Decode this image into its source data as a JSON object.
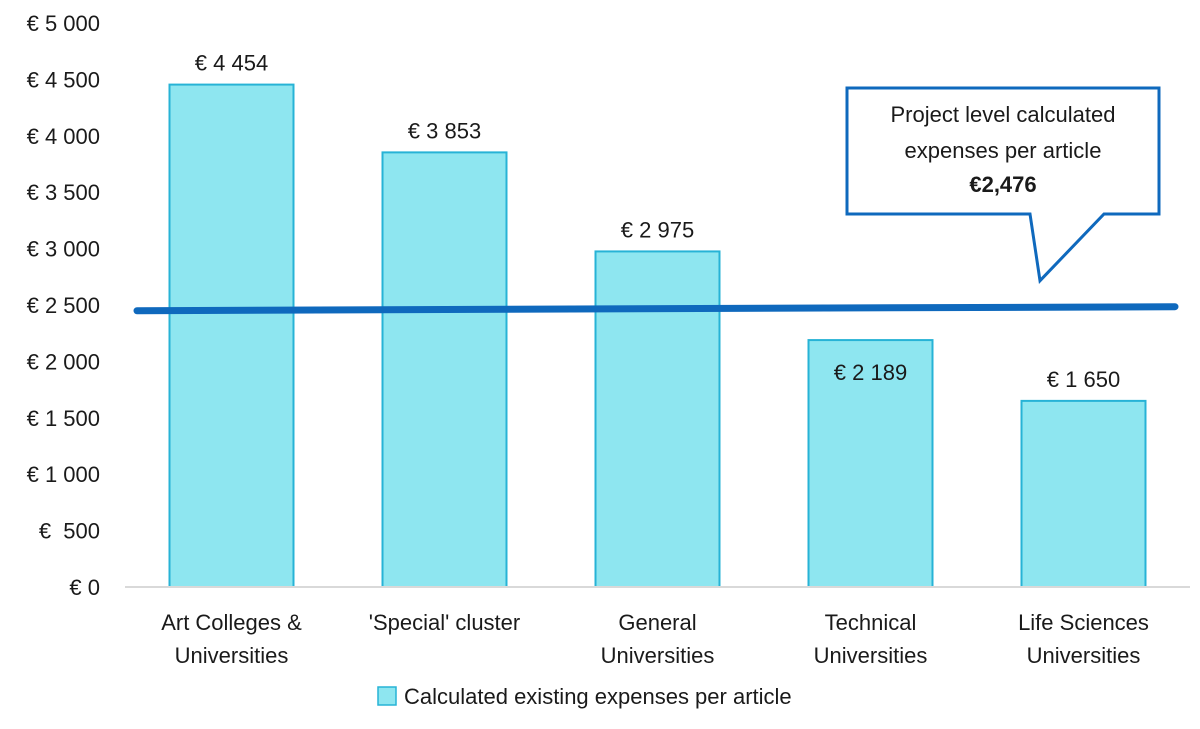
{
  "chart_data": {
    "type": "bar",
    "categories": [
      [
        "Art Colleges &",
        "Universities"
      ],
      [
        "'Special' cluster"
      ],
      [
        "General",
        "Universities"
      ],
      [
        "Technical",
        "Universities"
      ],
      [
        "Life Sciences",
        "Universities"
      ]
    ],
    "series": [
      {
        "name": "Calculated existing expenses per article",
        "values": [
          4454,
          3853,
          2975,
          2189,
          1650
        ],
        "data_labels": [
          "€ 4 454",
          "€ 3 853",
          "€ 2 975",
          "€ 2 189",
          "€ 1 650"
        ],
        "color": "#8ee6f0",
        "border_color": "#27b3d6"
      }
    ],
    "reference_line": {
      "value": 2476,
      "color": "#0f69bd"
    },
    "callout": {
      "lines": [
        "Project level calculated",
        "expenses per article"
      ],
      "value_label": "€2,476",
      "border_color": "#0f69bd"
    },
    "y_ticks": [
      0,
      500,
      1000,
      1500,
      2000,
      2500,
      3000,
      3500,
      4000,
      4500,
      5000
    ],
    "y_tick_labels": [
      "€ 0",
      "€  500",
      "€ 1 000",
      "€ 1 500",
      "€ 2 000",
      "€ 2 500",
      "€ 3 000",
      "€ 3 500",
      "€ 4 000",
      "€ 4 500",
      "€ 5 000"
    ],
    "ylim": [
      0,
      5000
    ],
    "grid": false,
    "legend_position": "bottom-center",
    "axis_color": "#d9d9d9"
  }
}
